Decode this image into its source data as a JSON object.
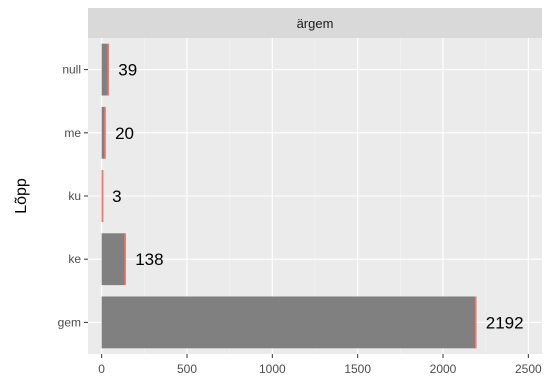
{
  "chart_data": {
    "type": "bar",
    "orientation": "horizontal",
    "facet_label": "ärgem",
    "ylabel": "Lõpp",
    "xlabel": "",
    "categories": [
      "null",
      "me",
      "ku",
      "ke",
      "gem"
    ],
    "values": [
      39,
      20,
      3,
      138,
      2192
    ],
    "data_labels": [
      "39",
      "20",
      "3",
      "138",
      "2192"
    ],
    "xlim": [
      -80,
      2580
    ],
    "x_ticks": [
      0,
      500,
      1000,
      1500,
      2000,
      2500
    ],
    "x_tick_labels": [
      "0",
      "500",
      "1000",
      "1500",
      "2000",
      "2500"
    ],
    "grid": true,
    "legend": "none",
    "colors": {
      "bar_fill": "#808080",
      "bar_edge": "#f8766d",
      "panel_bg": "#ebebeb",
      "strip_bg": "#d9d9d9",
      "grid_major": "#ffffff",
      "grid_minor": "#f2f2f2",
      "tick_text": "#4d4d4d",
      "label_text": "#000000",
      "strip_text": "#1a1a1a"
    }
  }
}
